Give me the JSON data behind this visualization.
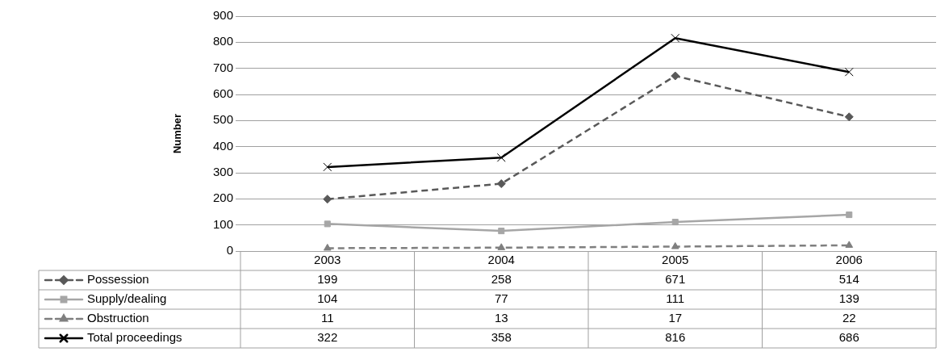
{
  "chart_data": {
    "type": "line",
    "ylabel": "Number",
    "categories": [
      "2003",
      "2004",
      "2005",
      "2006"
    ],
    "series": [
      {
        "name": "Possession",
        "color": "#595959",
        "marker": "diamond",
        "line_style": "dashed",
        "values": [
          199,
          258,
          671,
          514
        ]
      },
      {
        "name": "Supply/dealing",
        "color": "#a6a6a6",
        "marker": "square",
        "line_style": "solid",
        "values": [
          104,
          77,
          111,
          139
        ]
      },
      {
        "name": "Obstruction",
        "color": "#7f7f7f",
        "marker": "triangle",
        "line_style": "dashed",
        "values": [
          11,
          13,
          17,
          22
        ]
      },
      {
        "name": "Total proceedings",
        "color": "#000000",
        "marker": "cross",
        "line_style": "solid",
        "values": [
          322,
          358,
          816,
          686
        ]
      }
    ],
    "ylim": [
      0,
      900
    ],
    "yticks": [
      0,
      100,
      200,
      300,
      400,
      500,
      600,
      700,
      800,
      900
    ],
    "grid": "y",
    "data_labels": true,
    "legend": "bottom"
  }
}
